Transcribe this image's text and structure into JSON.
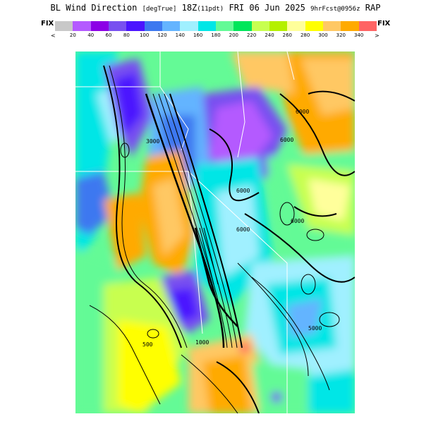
{
  "title": {
    "main": "BL Wind Direction",
    "units": "[degTrue]",
    "time": "18Z",
    "local": "(11pdt)",
    "date": "FRI 06 Jun 2025",
    "forecast": "9hrFcst@0956z",
    "model": "RAP"
  },
  "legend": {
    "left_label": "FIX",
    "right_label": "FIX",
    "under": "<",
    "over": ">",
    "ticks": [
      "20",
      "40",
      "60",
      "80",
      "100",
      "120",
      "140",
      "160",
      "180",
      "200",
      "220",
      "240",
      "260",
      "280",
      "300",
      "320",
      "340"
    ],
    "colors": [
      "#c8c8c8",
      "#b45aff",
      "#8c00e6",
      "#7850f0",
      "#4b14ff",
      "#3c78f0",
      "#64b4ff",
      "#a0f0ff",
      "#00e6e6",
      "#64fa96",
      "#00e65a",
      "#c8ff50",
      "#b4f000",
      "#ffff9b",
      "#ffff00",
      "#ffc864",
      "#ffaa00",
      "#ff6464"
    ]
  },
  "contours": {
    "labels": [
      "6000",
      "6000",
      "6000",
      "6000",
      "6000",
      "5000",
      "3000",
      "1000",
      "500"
    ]
  }
}
